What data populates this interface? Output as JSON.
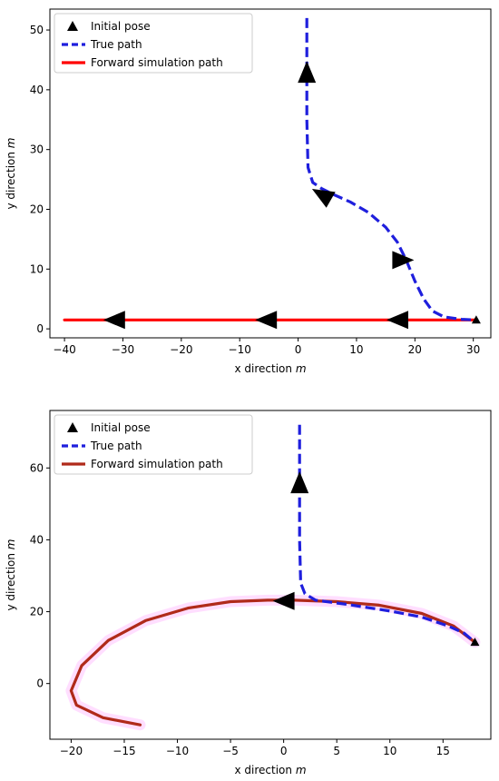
{
  "chart_data": [
    {
      "type": "line",
      "xlabel": "x direction",
      "ylabel": "y direction",
      "unit_symbol": "m",
      "xlim": [
        -42.5,
        33
      ],
      "ylim": [
        -1.5,
        53.5
      ],
      "xticks": [
        -40,
        -30,
        -20,
        -10,
        0,
        10,
        20,
        30
      ],
      "yticks": [
        0,
        10,
        20,
        30,
        40,
        50
      ],
      "grid": false,
      "legend_position": "top-left",
      "legend": [
        "Initial pose",
        "True path",
        "Forward simulation path"
      ],
      "colors": {
        "true_path": "#1f1fdd",
        "forward_path": "#ff0000",
        "pose": "#000000"
      },
      "series": [
        {
          "name": "True path",
          "style": "dashed",
          "x": [
            1.5,
            1.5,
            1.5,
            1.7,
            2.5,
            4,
            6,
            9,
            12,
            15,
            17,
            18.5,
            20,
            21.5,
            23,
            25,
            28,
            30.5
          ],
          "y": [
            52,
            45,
            35,
            27,
            24.5,
            23.5,
            22.5,
            21.2,
            19.5,
            17,
            14.5,
            11.5,
            8,
            5,
            3,
            2,
            1.6,
            1.5
          ]
        },
        {
          "name": "Forward simulation path",
          "style": "solid",
          "x": [
            -40,
            30.5
          ],
          "y": [
            1.5,
            1.5
          ]
        }
      ],
      "arrow_markers": [
        {
          "x": 1.5,
          "y": 43,
          "direction": "up"
        },
        {
          "x": 4,
          "y": 22.5,
          "direction": "up-left"
        },
        {
          "x": 18,
          "y": 11.5,
          "direction": "right"
        },
        {
          "x": -31.5,
          "y": 1.5,
          "direction": "left"
        },
        {
          "x": -5.5,
          "y": 1.5,
          "direction": "left"
        },
        {
          "x": 17,
          "y": 1.5,
          "direction": "left"
        }
      ],
      "initial_pose": {
        "x": 30.5,
        "y": 1.5
      }
    },
    {
      "type": "line",
      "xlabel": "x direction",
      "ylabel": "y direction",
      "unit_symbol": "m",
      "xlim": [
        -22,
        19.5
      ],
      "ylim": [
        -15.5,
        76
      ],
      "xticks": [
        -20,
        -15,
        -10,
        -5,
        0,
        5,
        10,
        15
      ],
      "yticks": [
        0,
        20,
        40,
        60
      ],
      "grid": false,
      "legend_position": "top-left",
      "legend": [
        "Initial pose",
        "True path",
        "Forward simulation path"
      ],
      "colors": {
        "true_path": "#1f1fdd",
        "forward_path": "#b02a1a",
        "pose": "#000000"
      },
      "series": [
        {
          "name": "True path",
          "style": "dashed",
          "x": [
            1.5,
            1.5,
            1.5,
            1.6,
            2,
            3,
            6,
            10,
            13,
            15.5,
            17,
            18
          ],
          "y": [
            72,
            60,
            40,
            28,
            25,
            23.2,
            22,
            20.2,
            18.5,
            16,
            14,
            11.5
          ]
        },
        {
          "name": "Forward simulation path",
          "style": "solid",
          "x": [
            18,
            16,
            13,
            9,
            5,
            1,
            -1.5,
            -5,
            -9,
            -13,
            -16.5,
            -19,
            -20,
            -19.5,
            -17,
            -13.5
          ],
          "y": [
            11.5,
            16,
            19.5,
            21.8,
            22.8,
            23.2,
            23.2,
            22.8,
            21,
            17.5,
            12,
            5,
            -2,
            -6,
            -9.5,
            -11.5
          ]
        }
      ],
      "arrow_markers": [
        {
          "x": 1.5,
          "y": 56,
          "direction": "up"
        },
        {
          "x": 0,
          "y": 23,
          "direction": "left"
        }
      ],
      "initial_pose": {
        "x": 18,
        "y": 11.5
      }
    }
  ]
}
